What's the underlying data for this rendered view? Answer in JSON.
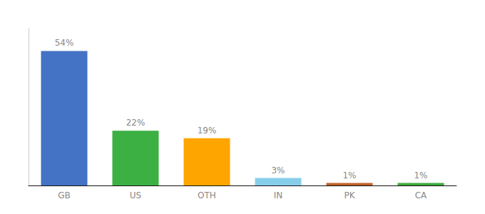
{
  "chart_data": {
    "type": "bar",
    "categories": [
      "GB",
      "US",
      "OTH",
      "IN",
      "PK",
      "CA"
    ],
    "values": [
      54,
      22,
      19,
      3,
      1,
      1
    ],
    "value_labels": [
      "54%",
      "22%",
      "19%",
      "3%",
      "1%",
      "1%"
    ],
    "colors": [
      "#4472C4",
      "#3CB043",
      "#FFA500",
      "#87CEEB",
      "#C0622A",
      "#3DAA3D"
    ],
    "ylim": [
      0,
      63
    ],
    "grid": false,
    "data_labels": true,
    "tick_labels": "x"
  }
}
